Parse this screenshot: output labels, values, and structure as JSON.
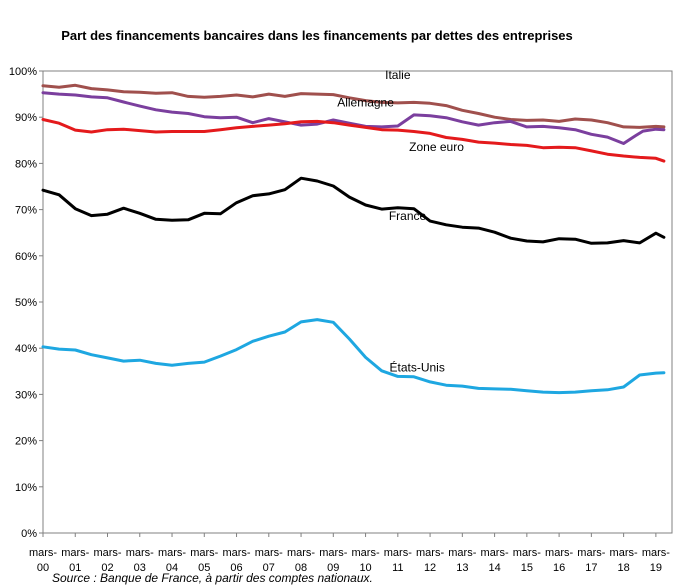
{
  "chart_data": {
    "type": "line",
    "title": "Part des financements bancaires dans les financements par dettes des entreprises",
    "xlabel": "",
    "ylabel": "",
    "ylim": [
      0,
      100
    ],
    "y_ticks": [
      "0%",
      "10%",
      "20%",
      "30%",
      "40%",
      "50%",
      "60%",
      "70%",
      "80%",
      "90%",
      "100%"
    ],
    "x_tick_labels": [
      {
        "top": "mars-",
        "bottom": "00"
      },
      {
        "top": "mars-",
        "bottom": "01"
      },
      {
        "top": "mars-",
        "bottom": "02"
      },
      {
        "top": "mars-",
        "bottom": "03"
      },
      {
        "top": "mars-",
        "bottom": "04"
      },
      {
        "top": "mars-",
        "bottom": "05"
      },
      {
        "top": "mars-",
        "bottom": "06"
      },
      {
        "top": "mars-",
        "bottom": "07"
      },
      {
        "top": "mars-",
        "bottom": "08"
      },
      {
        "top": "mars-",
        "bottom": "09"
      },
      {
        "top": "mars-",
        "bottom": "10"
      },
      {
        "top": "mars-",
        "bottom": "11"
      },
      {
        "top": "mars-",
        "bottom": "12"
      },
      {
        "top": "mars-",
        "bottom": "13"
      },
      {
        "top": "mars-",
        "bottom": "14"
      },
      {
        "top": "mars-",
        "bottom": "15"
      },
      {
        "top": "mars-",
        "bottom": "16"
      },
      {
        "top": "mars-",
        "bottom": "17"
      },
      {
        "top": "mars-",
        "bottom": "18"
      },
      {
        "top": "mars-",
        "bottom": "19"
      }
    ],
    "x_years": [
      2000,
      2001,
      2002,
      2003,
      2004,
      2005,
      2006,
      2007,
      2008,
      2009,
      2010,
      2011,
      2012,
      2013,
      2014,
      2015,
      2016,
      2017,
      2018,
      2019
    ],
    "xlim": [
      2000,
      2019.5
    ],
    "grid": false,
    "legend": "none",
    "series": [
      {
        "name": "Italie",
        "color": "#a0504d",
        "label_anchor_year": 2011.0,
        "label_value": 98.3,
        "x": [
          2000,
          2000.5,
          2001,
          2001.5,
          2002,
          2002.5,
          2003,
          2003.5,
          2004,
          2004.5,
          2005,
          2005.5,
          2006,
          2006.5,
          2007,
          2007.5,
          2008,
          2008.5,
          2009,
          2009.5,
          2010,
          2010.5,
          2011,
          2011.5,
          2012,
          2012.5,
          2013,
          2013.5,
          2014,
          2014.5,
          2015,
          2015.5,
          2016,
          2016.5,
          2017,
          2017.5,
          2018,
          2018.5,
          2019,
          2019.25
        ],
        "values": [
          96.8,
          96.5,
          96.9,
          96.2,
          95.9,
          95.5,
          95.4,
          95.2,
          95.3,
          94.5,
          94.3,
          94.5,
          94.8,
          94.4,
          95.0,
          94.5,
          95.1,
          95.0,
          94.9,
          94.2,
          93.6,
          93.2,
          93.1,
          93.2,
          93.0,
          92.5,
          91.5,
          90.8,
          90.0,
          89.5,
          89.3,
          89.4,
          89.1,
          89.6,
          89.4,
          88.8,
          87.9,
          87.8,
          88.0,
          87.9
        ]
      },
      {
        "name": "Allemagne",
        "color": "#7b3f9e",
        "label_anchor_year": 2010.0,
        "label_value": 92.3,
        "x": [
          2000,
          2000.5,
          2001,
          2001.5,
          2002,
          2002.5,
          2003,
          2003.5,
          2004,
          2004.5,
          2005,
          2005.5,
          2006,
          2006.5,
          2007,
          2007.5,
          2008,
          2008.5,
          2009,
          2009.5,
          2010,
          2010.5,
          2011,
          2011.5,
          2012,
          2012.5,
          2013,
          2013.5,
          2014,
          2014.5,
          2015,
          2015.5,
          2016,
          2016.5,
          2017,
          2017.5,
          2018,
          2018.3,
          2018.6,
          2019,
          2019.25
        ],
        "values": [
          95.3,
          95.0,
          94.8,
          94.4,
          94.2,
          93.3,
          92.4,
          91.6,
          91.1,
          90.8,
          90.1,
          89.9,
          90.0,
          88.8,
          89.7,
          89.0,
          88.3,
          88.5,
          89.4,
          88.7,
          88.0,
          87.9,
          88.1,
          90.5,
          90.3,
          89.9,
          89.0,
          88.3,
          88.8,
          89.1,
          87.9,
          88.0,
          87.7,
          87.3,
          86.3,
          85.7,
          84.3,
          85.7,
          87.0,
          87.4,
          87.3
        ]
      },
      {
        "name": "Zone euro",
        "color": "#e41a1c",
        "label_anchor_year": 2012.2,
        "label_value": 82.7,
        "x": [
          2000,
          2000.5,
          2001,
          2001.5,
          2002,
          2002.5,
          2003,
          2003.5,
          2004,
          2004.5,
          2005,
          2005.5,
          2006,
          2006.5,
          2007,
          2007.5,
          2008,
          2008.5,
          2009,
          2009.5,
          2010,
          2010.5,
          2011,
          2011.5,
          2012,
          2012.5,
          2013,
          2013.5,
          2014,
          2014.5,
          2015,
          2015.5,
          2016,
          2016.5,
          2017,
          2017.5,
          2018,
          2018.5,
          2019,
          2019.25
        ],
        "values": [
          89.5,
          88.7,
          87.2,
          86.8,
          87.3,
          87.4,
          87.1,
          86.8,
          86.9,
          86.9,
          86.9,
          87.3,
          87.7,
          88.0,
          88.3,
          88.6,
          89.0,
          89.1,
          88.8,
          88.3,
          87.8,
          87.3,
          87.2,
          86.9,
          86.5,
          85.6,
          85.2,
          84.6,
          84.4,
          84.1,
          83.9,
          83.4,
          83.5,
          83.4,
          82.7,
          82.0,
          81.6,
          81.3,
          81.1,
          80.5
        ]
      },
      {
        "name": "France",
        "color": "#000000",
        "label_anchor_year": 2011.3,
        "label_value": 67.8,
        "x": [
          2000,
          2000.5,
          2001,
          2001.5,
          2002,
          2002.5,
          2003,
          2003.5,
          2004,
          2004.5,
          2005,
          2005.5,
          2006,
          2006.5,
          2007,
          2007.5,
          2008,
          2008.5,
          2009,
          2009.5,
          2010,
          2010.5,
          2011,
          2011.5,
          2012,
          2012.5,
          2013,
          2013.5,
          2014,
          2014.5,
          2015,
          2015.5,
          2016,
          2016.5,
          2017,
          2017.5,
          2018,
          2018.5,
          2019,
          2019.25
        ],
        "values": [
          74.2,
          73.2,
          70.2,
          68.7,
          69.0,
          70.3,
          69.2,
          67.9,
          67.7,
          67.8,
          69.2,
          69.1,
          71.5,
          73.0,
          73.4,
          74.3,
          76.8,
          76.2,
          75.1,
          72.7,
          71.0,
          70.1,
          70.4,
          70.2,
          67.5,
          66.7,
          66.2,
          66.0,
          65.1,
          63.8,
          63.2,
          63.0,
          63.7,
          63.6,
          62.7,
          62.8,
          63.3,
          62.8,
          64.9,
          64.0
        ]
      },
      {
        "name": "États-Unis",
        "color": "#1ea7e1",
        "label_anchor_year": 2011.6,
        "label_value": 35.0,
        "x": [
          2000,
          2000.5,
          2001,
          2001.5,
          2002,
          2002.5,
          2003,
          2003.5,
          2004,
          2004.5,
          2005,
          2005.5,
          2006,
          2006.5,
          2007,
          2007.5,
          2008,
          2008.5,
          2009,
          2009.5,
          2010,
          2010.5,
          2011,
          2011.5,
          2012,
          2012.5,
          2013,
          2013.5,
          2014,
          2014.5,
          2015,
          2015.5,
          2016,
          2016.5,
          2017,
          2017.5,
          2018,
          2018.5,
          2019,
          2019.25
        ],
        "values": [
          40.3,
          39.8,
          39.6,
          38.6,
          37.9,
          37.2,
          37.4,
          36.7,
          36.3,
          36.7,
          37.0,
          38.3,
          39.7,
          41.5,
          42.6,
          43.5,
          45.7,
          46.2,
          45.6,
          42.0,
          38.0,
          35.1,
          33.9,
          33.8,
          32.7,
          32.0,
          31.8,
          31.3,
          31.2,
          31.1,
          30.8,
          30.5,
          30.4,
          30.5,
          30.8,
          31.0,
          31.6,
          34.2,
          34.6,
          34.7
        ]
      }
    ]
  },
  "source_note": "Source : Banque de France, à partir des comptes nationaux."
}
